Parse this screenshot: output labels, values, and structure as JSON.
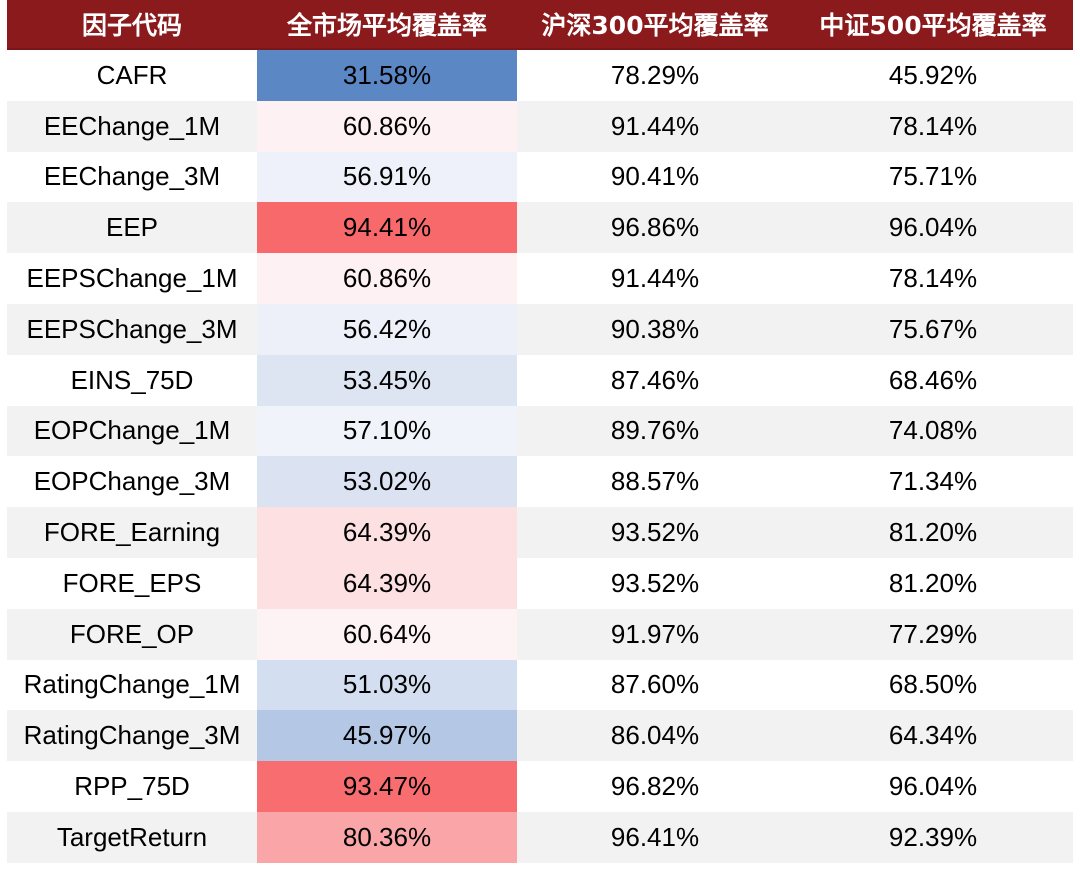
{
  "colors": {
    "header_bg": "#8b1a1c",
    "row_shade": "#f2f2f2"
  },
  "table": {
    "headers": [
      "因子代码",
      "全市场平均覆盖率",
      "沪深300平均覆盖率",
      "中证500平均覆盖率"
    ],
    "rows": [
      {
        "factor": "CAFR",
        "all": "31.58%",
        "hs300": "78.29%",
        "zz500": "45.92%",
        "all_color": "#5b87c5"
      },
      {
        "factor": "EEChange_1M",
        "all": "60.86%",
        "hs300": "91.44%",
        "zz500": "78.14%",
        "all_color": "#fdf1f3"
      },
      {
        "factor": "EEChange_3M",
        "all": "56.91%",
        "hs300": "90.41%",
        "zz500": "75.71%",
        "all_color": "#eef1f9"
      },
      {
        "factor": "EEP",
        "all": "94.41%",
        "hs300": "96.86%",
        "zz500": "96.04%",
        "all_color": "#f8696b"
      },
      {
        "factor": "EEPSChange_1M",
        "all": "60.86%",
        "hs300": "91.44%",
        "zz500": "78.14%",
        "all_color": "#fdf1f3"
      },
      {
        "factor": "EEPSChange_3M",
        "all": "56.42%",
        "hs300": "90.38%",
        "zz500": "75.67%",
        "all_color": "#edf0f8"
      },
      {
        "factor": "EINS_75D",
        "all": "53.45%",
        "hs300": "87.46%",
        "zz500": "68.46%",
        "all_color": "#dde5f3"
      },
      {
        "factor": "EOPChange_1M",
        "all": "57.10%",
        "hs300": "89.76%",
        "zz500": "74.08%",
        "all_color": "#f0f3fa"
      },
      {
        "factor": "EOPChange_3M",
        "all": "53.02%",
        "hs300": "88.57%",
        "zz500": "71.34%",
        "all_color": "#dbe3f2"
      },
      {
        "factor": "FORE_Earning",
        "all": "64.39%",
        "hs300": "93.52%",
        "zz500": "81.20%",
        "all_color": "#fde0e2"
      },
      {
        "factor": "FORE_EPS",
        "all": "64.39%",
        "hs300": "93.52%",
        "zz500": "81.20%",
        "all_color": "#fde0e2"
      },
      {
        "factor": "FORE_OP",
        "all": "60.64%",
        "hs300": "91.97%",
        "zz500": "77.29%",
        "all_color": "#fef3f4"
      },
      {
        "factor": "RatingChange_1M",
        "all": "51.03%",
        "hs300": "87.60%",
        "zz500": "68.50%",
        "all_color": "#d3def0"
      },
      {
        "factor": "RatingChange_3M",
        "all": "45.97%",
        "hs300": "86.04%",
        "zz500": "64.34%",
        "all_color": "#b4c8e6"
      },
      {
        "factor": "RPP_75D",
        "all": "93.47%",
        "hs300": "96.82%",
        "zz500": "96.04%",
        "all_color": "#f86d6f"
      },
      {
        "factor": "TargetReturn",
        "all": "80.36%",
        "hs300": "96.41%",
        "zz500": "92.39%",
        "all_color": "#faa6a8"
      }
    ]
  }
}
